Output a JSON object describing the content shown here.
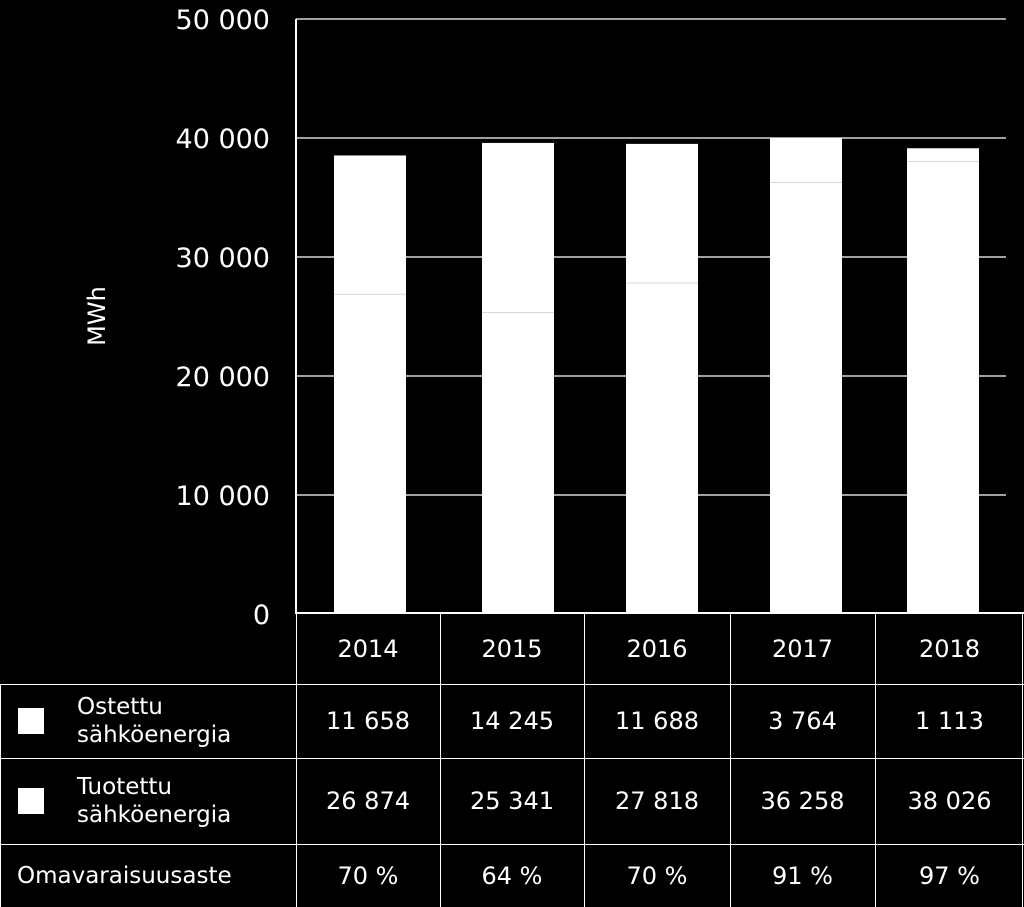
{
  "chart_data": {
    "type": "bar",
    "stacked": true,
    "categories": [
      "2014",
      "2015",
      "2016",
      "2017",
      "2018"
    ],
    "series": [
      {
        "name": "Tuotettu sähköenergia",
        "values": [
          26874,
          25341,
          27818,
          36258,
          38026
        ]
      },
      {
        "name": "Ostettu sähköenergia",
        "values": [
          11658,
          14245,
          11688,
          3764,
          1113
        ]
      }
    ],
    "ylabel": "MWh",
    "ylim": [
      0,
      50000
    ],
    "yticks": [
      0,
      10000,
      20000,
      30000,
      40000,
      50000
    ],
    "ytick_labels": [
      "0",
      "10 000",
      "20 000",
      "30 000",
      "40 000",
      "50 000"
    ],
    "grid": true,
    "bar_color": "#ffffff",
    "background": "#000000"
  },
  "table": {
    "years": [
      "2014",
      "2015",
      "2016",
      "2017",
      "2018"
    ],
    "rows": [
      {
        "label_line1": "Ostettu",
        "label_line2": "sähköenergia",
        "values": [
          "11 658",
          "14 245",
          "11 688",
          "3 764",
          "1 113"
        ]
      },
      {
        "label_line1": "Tuotettu",
        "label_line2": "sähköenergia",
        "values": [
          "26 874",
          "25 341",
          "27 818",
          "36 258",
          "38 026"
        ]
      },
      {
        "label": "Omavaraisuusaste",
        "values": [
          "70 %",
          "64 %",
          "70 %",
          "91 %",
          "97 %"
        ]
      }
    ]
  }
}
